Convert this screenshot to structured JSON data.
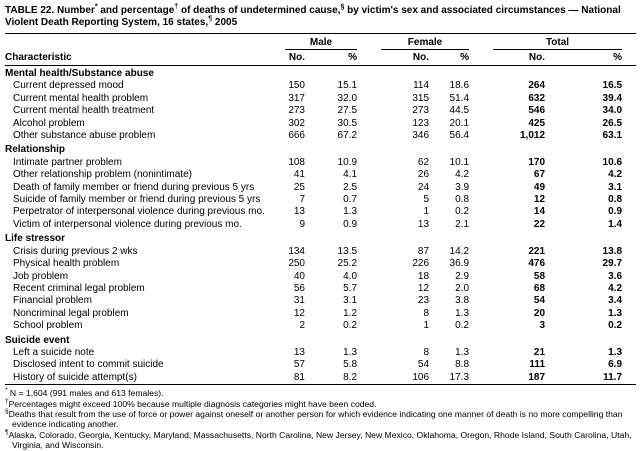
{
  "title_segments": [
    {
      "text": "TABLE 22. Number"
    },
    {
      "sup": "*"
    },
    {
      "text": " and percentage"
    },
    {
      "sup": "†"
    },
    {
      "text": " of deaths of undetermined cause,"
    },
    {
      "sup": "§"
    },
    {
      "text": " by victim's sex and associated circumstances — National Violent Death Reporting System, 16 states,"
    },
    {
      "sup": "¶"
    },
    {
      "text": " 2005"
    }
  ],
  "table": {
    "characteristic_label": "Characteristic",
    "group_headers": [
      "Male",
      "Female",
      "Total"
    ],
    "sub_headers": [
      "No.",
      "%"
    ],
    "sections": [
      {
        "label": "Mental health/Substance abuse",
        "rows": [
          {
            "label": "Current depressed mood",
            "values": [
              "150",
              "15.1",
              "114",
              "18.6",
              "264",
              "16.5"
            ]
          },
          {
            "label": "Current mental health problem",
            "values": [
              "317",
              "32.0",
              "315",
              "51.4",
              "632",
              "39.4"
            ]
          },
          {
            "label": "Current mental health treatment",
            "values": [
              "273",
              "27.5",
              "273",
              "44.5",
              "546",
              "34.0"
            ]
          },
          {
            "label": "Alcohol problem",
            "values": [
              "302",
              "30.5",
              "123",
              "20.1",
              "425",
              "26.5"
            ]
          },
          {
            "label": "Other substance abuse problem",
            "values": [
              "666",
              "67.2",
              "346",
              "56.4",
              "1,012",
              "63.1"
            ]
          }
        ]
      },
      {
        "label": "Relationship",
        "rows": [
          {
            "label": "Intimate partner problem",
            "values": [
              "108",
              "10.9",
              "62",
              "10.1",
              "170",
              "10.6"
            ]
          },
          {
            "label": "Other relationship problem (nonintimate)",
            "values": [
              "41",
              "4.1",
              "26",
              "4.2",
              "67",
              "4.2"
            ]
          },
          {
            "label": "Death of family member or friend during previous 5 yrs",
            "values": [
              "25",
              "2.5",
              "24",
              "3.9",
              "49",
              "3.1"
            ]
          },
          {
            "label": "Suicide of family member or friend during previous 5 yrs",
            "values": [
              "7",
              "0.7",
              "5",
              "0.8",
              "12",
              "0.8"
            ]
          },
          {
            "label": "Perpetrator of interpersonal violence during previous mo.",
            "values": [
              "13",
              "1.3",
              "1",
              "0.2",
              "14",
              "0.9"
            ]
          },
          {
            "label": "Victim of interpersonal violence during previous mo.",
            "values": [
              "9",
              "0.9",
              "13",
              "2.1",
              "22",
              "1.4"
            ]
          }
        ]
      },
      {
        "label": "Life stressor",
        "rows": [
          {
            "label": "Crisis during previous 2 wks",
            "values": [
              "134",
              "13.5",
              "87",
              "14.2",
              "221",
              "13.8"
            ]
          },
          {
            "label": "Physical health problem",
            "values": [
              "250",
              "25.2",
              "226",
              "36.9",
              "476",
              "29.7"
            ]
          },
          {
            "label": "Job problem",
            "values": [
              "40",
              "4.0",
              "18",
              "2.9",
              "58",
              "3.6"
            ]
          },
          {
            "label": "Recent criminal legal problem",
            "values": [
              "56",
              "5.7",
              "12",
              "2.0",
              "68",
              "4.2"
            ]
          },
          {
            "label": "Financial problem",
            "values": [
              "31",
              "3.1",
              "23",
              "3.8",
              "54",
              "3.4"
            ]
          },
          {
            "label": "Noncriminal legal problem",
            "values": [
              "12",
              "1.2",
              "8",
              "1.3",
              "20",
              "1.3"
            ]
          },
          {
            "label": "School problem",
            "values": [
              "2",
              "0.2",
              "1",
              "0.2",
              "3",
              "0.2"
            ]
          }
        ]
      },
      {
        "label": "Suicide event",
        "rows": [
          {
            "label": "Left a suicide note",
            "values": [
              "13",
              "1.3",
              "8",
              "1.3",
              "21",
              "1.3"
            ]
          },
          {
            "label": "Disclosed intent to commit suicide",
            "values": [
              "57",
              "5.8",
              "54",
              "8.8",
              "111",
              "6.9"
            ]
          },
          {
            "label": "History of suicide attempt(s)",
            "values": [
              "81",
              "8.2",
              "106",
              "17.3",
              "187",
              "11.7"
            ]
          }
        ]
      }
    ]
  },
  "footnotes": [
    {
      "marker": "*",
      "text": " N = 1,604 (991 males and 613 females)."
    },
    {
      "marker": "†",
      "text": "Percentages might exceed 100% because multiple diagnosis categories might have been coded."
    },
    {
      "marker": "§",
      "text": "Deaths that result from the use of force or power against oneself or another person for which evidence indicating one manner of death is no more compelling than evidence indicating another."
    },
    {
      "marker": "¶",
      "text": "Alaska, Colorado, Georgia, Kentucky, Maryland, Massachusetts, North Carolina, New Jersey, New Mexico, Oklahoma, Oregon, Rhode Island, South Carolina, Utah, Virginia, and Wisconsin."
    }
  ]
}
